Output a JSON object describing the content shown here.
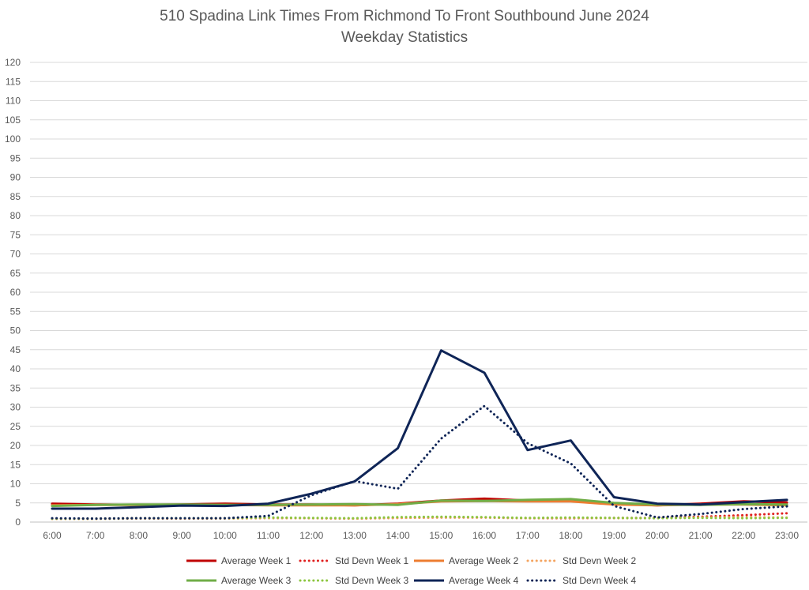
{
  "chart_data": {
    "type": "line",
    "title": "510 Spadina Link Times From Richmond To Front Southbound June 2024",
    "subtitle": "Weekday Statistics",
    "xlabel": "",
    "ylabel": "",
    "ylim": [
      0,
      120
    ],
    "ytick_step": 5,
    "grid": true,
    "legend_position": "bottom",
    "categories": [
      "6:00",
      "7:00",
      "8:00",
      "9:00",
      "10:00",
      "11:00",
      "12:00",
      "13:00",
      "14:00",
      "15:00",
      "16:00",
      "17:00",
      "18:00",
      "19:00",
      "20:00",
      "21:00",
      "22:00",
      "23:00"
    ],
    "series": [
      {
        "name": "Average Week 1",
        "color": "#c00000",
        "style": "solid",
        "values": [
          4.8,
          4.6,
          4.5,
          4.6,
          4.8,
          4.6,
          4.6,
          4.4,
          4.8,
          5.6,
          6.1,
          5.6,
          5.6,
          4.8,
          4.4,
          4.8,
          5.4,
          5.1
        ]
      },
      {
        "name": "Std Devn Week 1",
        "color": "#e02020",
        "style": "dotted",
        "values": [
          0.9,
          0.9,
          1.0,
          0.9,
          1.0,
          1.1,
          1.0,
          0.9,
          1.1,
          1.2,
          1.2,
          1.0,
          1.0,
          1.1,
          1.1,
          1.4,
          1.8,
          2.3
        ]
      },
      {
        "name": "Average Week 2",
        "color": "#ed7d31",
        "style": "solid",
        "values": [
          4.4,
          4.5,
          4.5,
          4.5,
          4.5,
          4.4,
          4.4,
          4.4,
          4.7,
          5.4,
          5.5,
          5.4,
          5.4,
          4.6,
          4.4,
          4.6,
          4.6,
          4.4
        ]
      },
      {
        "name": "Std Devn Week 2",
        "color": "#f4a460",
        "style": "dotted",
        "values": [
          0.8,
          0.8,
          0.9,
          0.9,
          0.9,
          1.0,
          1.0,
          0.9,
          1.1,
          1.2,
          1.2,
          1.0,
          1.1,
          1.0,
          1.0,
          1.2,
          1.3,
          1.2
        ]
      },
      {
        "name": "Average Week 3",
        "color": "#70ad47",
        "style": "solid",
        "values": [
          4.2,
          4.5,
          4.6,
          4.6,
          4.5,
          4.5,
          4.6,
          4.7,
          4.5,
          5.6,
          5.5,
          5.8,
          6.0,
          5.0,
          4.6,
          4.5,
          4.7,
          4.6
        ]
      },
      {
        "name": "Std Devn Week 3",
        "color": "#8cc63f",
        "style": "dotted",
        "values": [
          0.9,
          0.9,
          1.0,
          1.0,
          1.0,
          1.2,
          1.1,
          1.0,
          1.3,
          1.4,
          1.3,
          1.1,
          1.2,
          1.1,
          1.0,
          1.1,
          1.0,
          1.1
        ]
      },
      {
        "name": "Average Week 4",
        "color": "#0f2557",
        "style": "solid",
        "values": [
          3.5,
          3.5,
          3.9,
          4.3,
          4.2,
          4.8,
          7.4,
          10.6,
          19.3,
          44.8,
          39.0,
          18.8,
          21.3,
          6.5,
          4.8,
          4.6,
          5.2,
          5.8
        ]
      },
      {
        "name": "Std Devn Week 4",
        "color": "#0f2557",
        "style": "dotted",
        "values": [
          1.0,
          0.9,
          1.0,
          1.0,
          1.0,
          1.6,
          7.0,
          10.7,
          8.7,
          21.8,
          30.3,
          20.6,
          15.3,
          4.2,
          1.2,
          2.1,
          3.4,
          4.1
        ]
      }
    ]
  }
}
